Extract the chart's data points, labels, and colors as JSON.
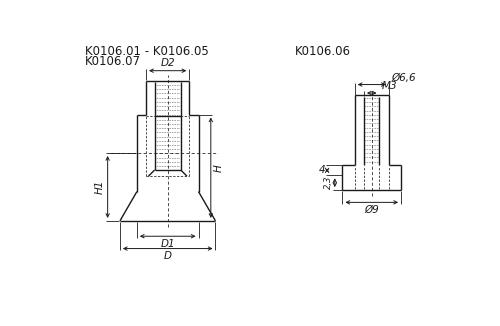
{
  "bg_color": "#ffffff",
  "line_color": "#1a1a1a",
  "title1": "K0106.01 - K0106.05",
  "title2": "K0106.07",
  "title3": "K0106.06",
  "font_size_title": 8.5,
  "font_size_dim": 7.5
}
